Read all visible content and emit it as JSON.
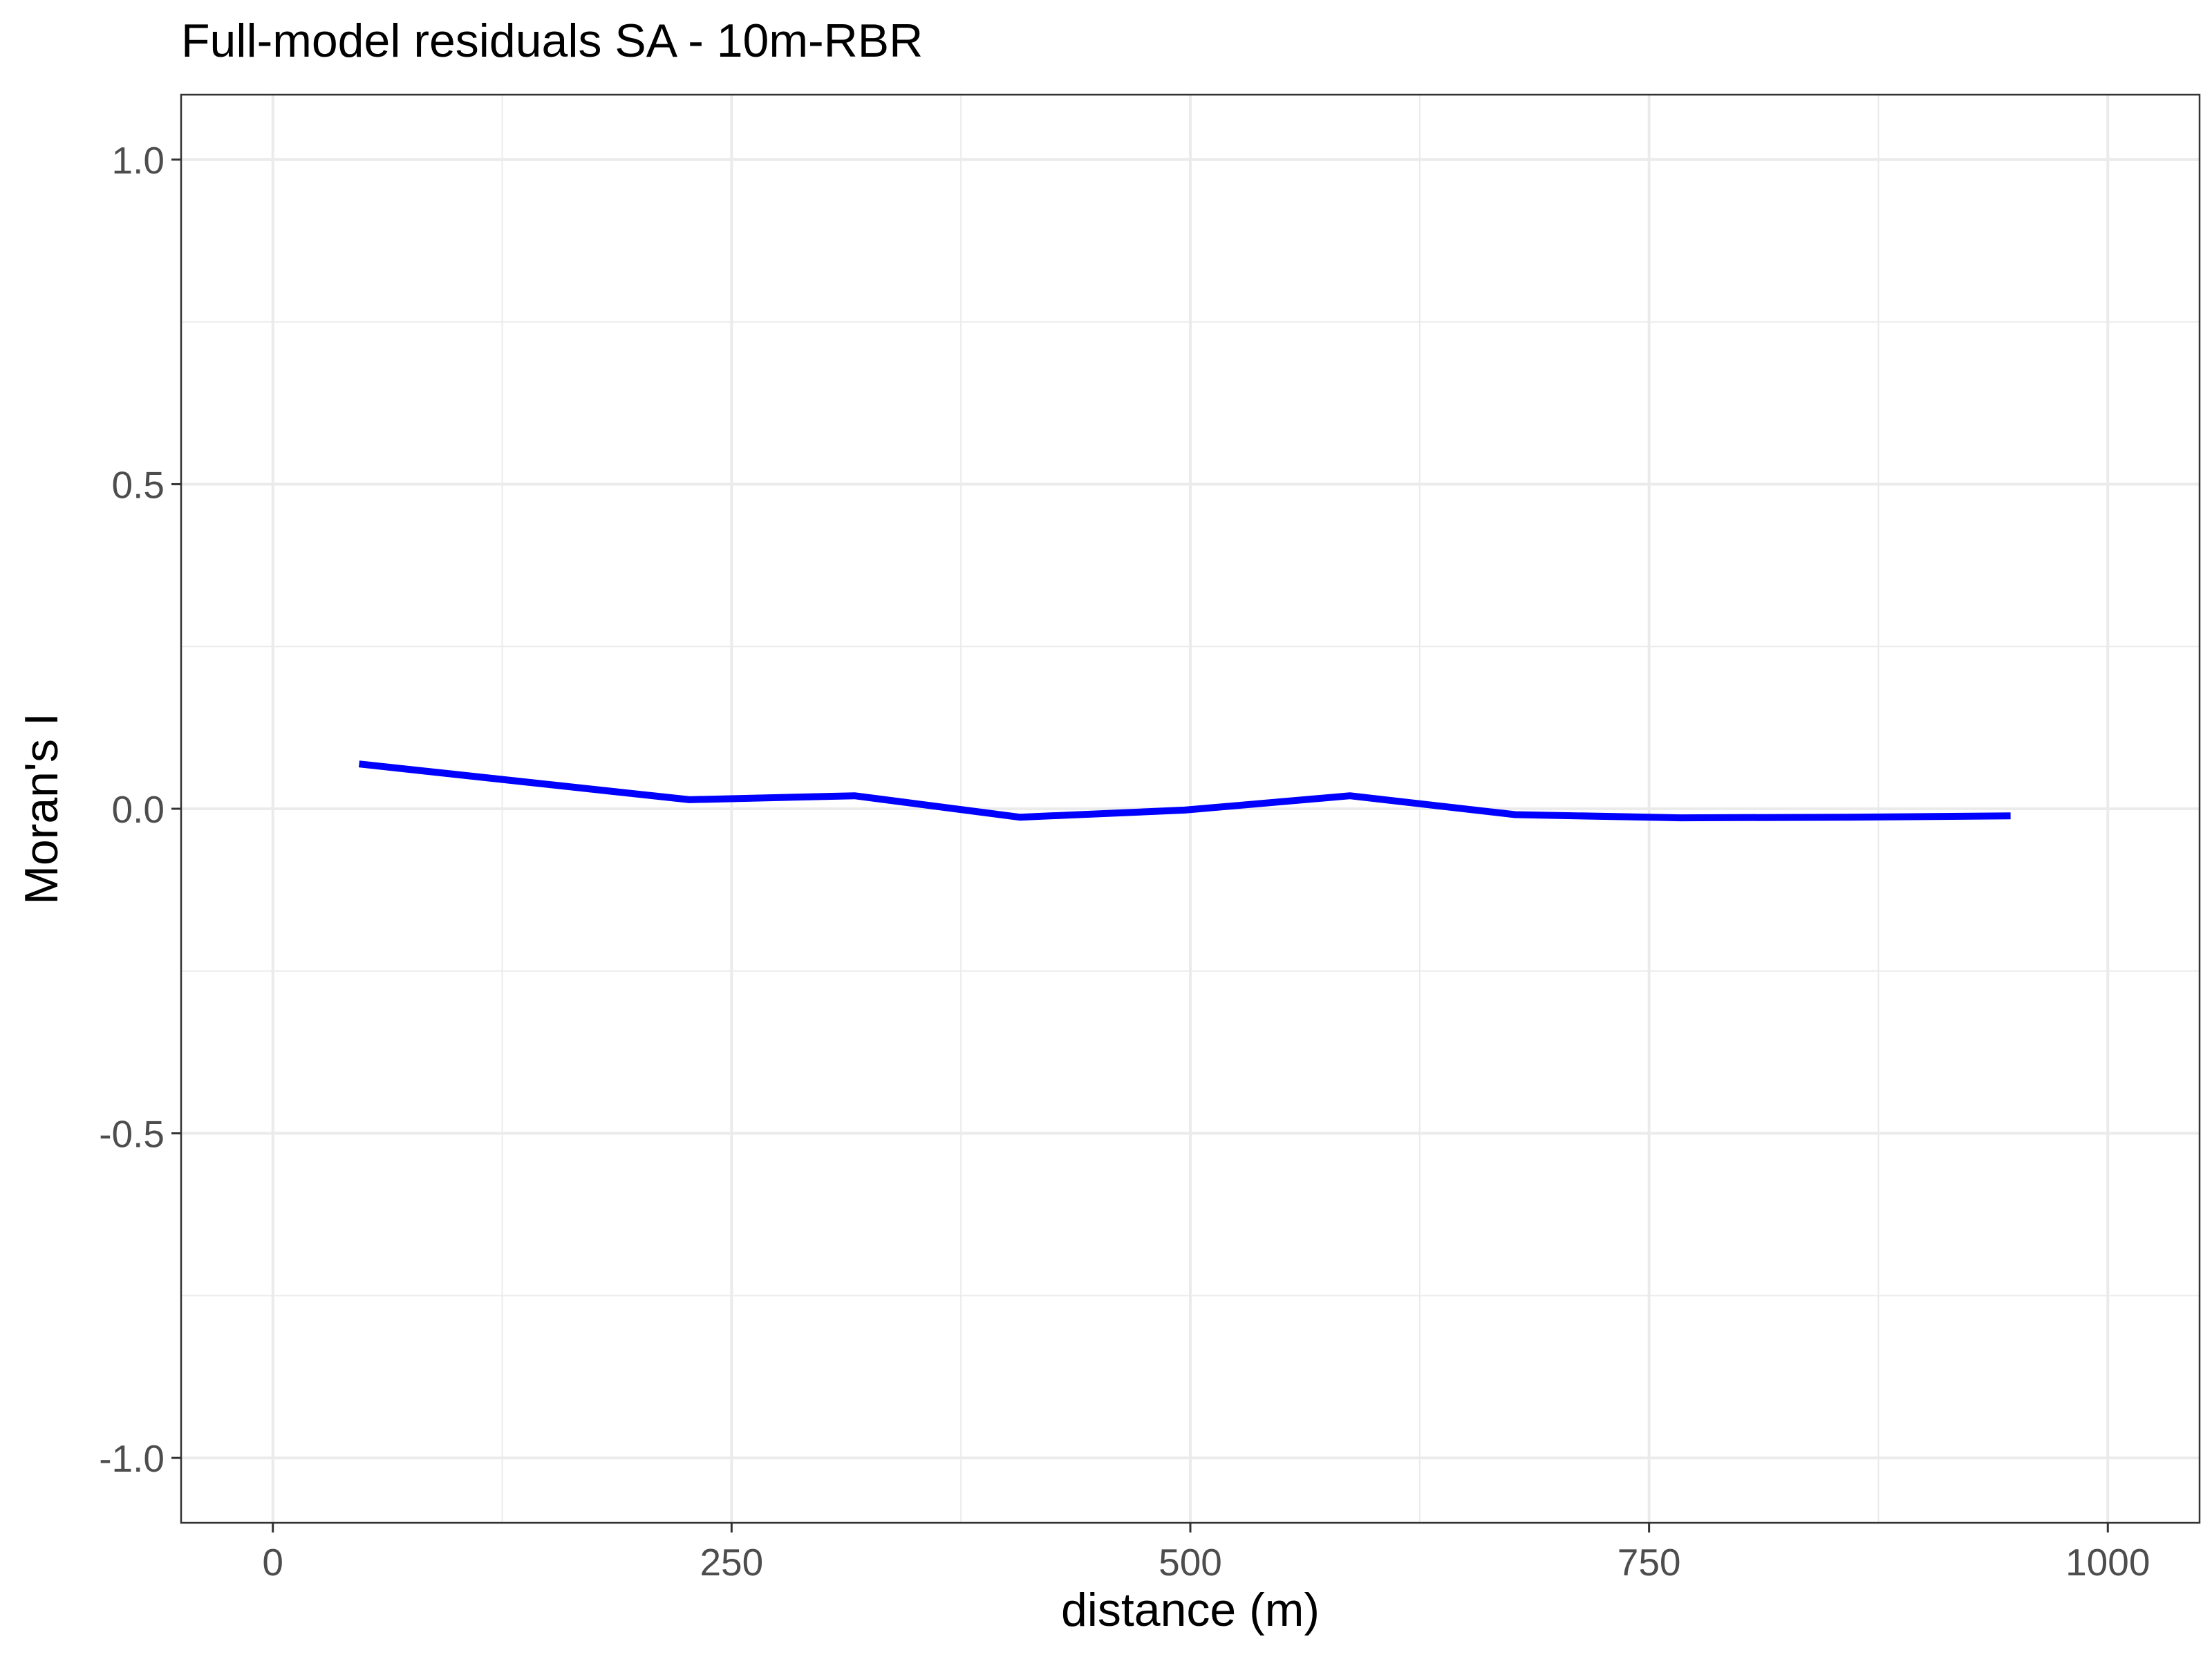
{
  "chart_data": {
    "type": "line",
    "title": "Full-model residuals SA - 10m-RBR",
    "xlabel": "distance (m)",
    "ylabel": "Moran's I",
    "xlim": [
      -50,
      1050
    ],
    "ylim": [
      -1.1,
      1.1
    ],
    "x_ticks": [
      0,
      250,
      500,
      750,
      1000
    ],
    "x_tick_labels": [
      "0",
      "250",
      "500",
      "750",
      "1000"
    ],
    "y_ticks": [
      -1.0,
      -0.5,
      0.0,
      0.5,
      1.0
    ],
    "y_tick_labels": [
      "-1.0",
      "-0.5",
      "0.0",
      "0.5",
      "1.0"
    ],
    "grid": true,
    "series": [
      {
        "color": "#0000ff",
        "x": [
          47,
          227,
          317,
          407,
          497,
          587,
          677,
          767,
          857,
          947
        ],
        "y": [
          0.069,
          0.014,
          0.02,
          -0.013,
          -0.002,
          0.02,
          -0.009,
          -0.014,
          -0.013,
          -0.011
        ]
      }
    ]
  }
}
